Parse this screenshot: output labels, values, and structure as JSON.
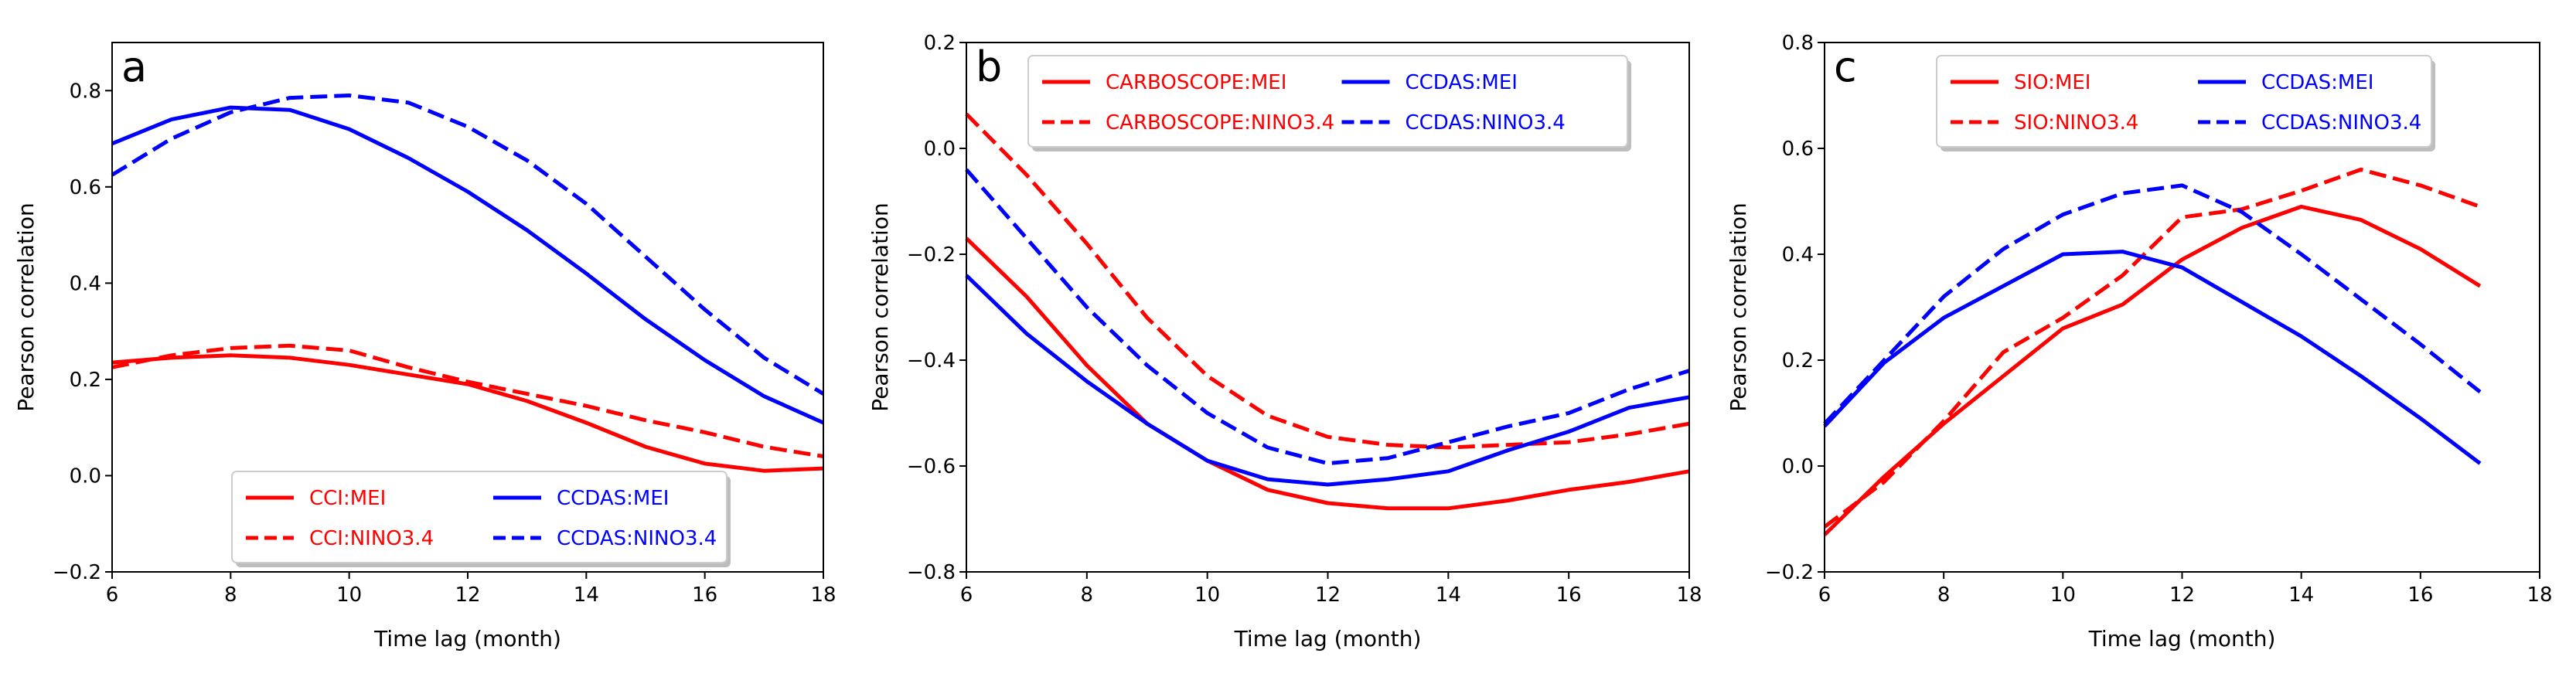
{
  "chart_data": [
    {
      "type": "line",
      "panel_label": "a",
      "xlabel": "Time lag (month)",
      "ylabel": "Pearson correlation",
      "xlim": [
        6,
        18
      ],
      "ylim": [
        -0.2,
        0.9
      ],
      "xticks": [
        6,
        8,
        10,
        12,
        14,
        16,
        18
      ],
      "yticks": [
        -0.2,
        0.0,
        0.2,
        0.4,
        0.6,
        0.8
      ],
      "ytick_labels": [
        "−0.2",
        "0.0",
        "0.2",
        "0.4",
        "0.6",
        "0.8"
      ],
      "legend_position": "lower-center",
      "series": [
        {
          "name": "CCI:MEI",
          "color": "#ff0000",
          "dash": "solid",
          "x": [
            6,
            7,
            8,
            9,
            10,
            11,
            12,
            13,
            14,
            15,
            16,
            17,
            18
          ],
          "y": [
            0.235,
            0.245,
            0.25,
            0.245,
            0.23,
            0.21,
            0.19,
            0.155,
            0.11,
            0.06,
            0.025,
            0.01,
            0.015
          ]
        },
        {
          "name": "CCI:NINO3.4",
          "color": "#ff0000",
          "dash": "dashed",
          "x": [
            6,
            7,
            8,
            9,
            10,
            11,
            12,
            13,
            14,
            15,
            16,
            17,
            18
          ],
          "y": [
            0.225,
            0.25,
            0.265,
            0.27,
            0.26,
            0.225,
            0.195,
            0.17,
            0.145,
            0.115,
            0.09,
            0.06,
            0.04
          ]
        },
        {
          "name": "CCDAS:MEI",
          "color": "#0000ff",
          "dash": "solid",
          "x": [
            6,
            7,
            8,
            9,
            10,
            11,
            12,
            13,
            14,
            15,
            16,
            17,
            18
          ],
          "y": [
            0.69,
            0.74,
            0.765,
            0.76,
            0.72,
            0.66,
            0.59,
            0.51,
            0.42,
            0.325,
            0.24,
            0.165,
            0.11
          ]
        },
        {
          "name": "CCDAS:NINO3.4",
          "color": "#0000ff",
          "dash": "dashed",
          "x": [
            6,
            7,
            8,
            9,
            10,
            11,
            12,
            13,
            14,
            15,
            16,
            17,
            18
          ],
          "y": [
            0.625,
            0.7,
            0.755,
            0.785,
            0.79,
            0.775,
            0.725,
            0.655,
            0.565,
            0.455,
            0.345,
            0.245,
            0.17
          ]
        }
      ]
    },
    {
      "type": "line",
      "panel_label": "b",
      "xlabel": "Time lag (month)",
      "ylabel": "Pearson correlation",
      "xlim": [
        6,
        18
      ],
      "ylim": [
        -0.8,
        0.2
      ],
      "xticks": [
        6,
        8,
        10,
        12,
        14,
        16,
        18
      ],
      "yticks": [
        -0.8,
        -0.6,
        -0.4,
        -0.2,
        0.0,
        0.2
      ],
      "ytick_labels": [
        "−0.8",
        "−0.6",
        "−0.4",
        "−0.2",
        "0.0",
        "0.2"
      ],
      "legend_position": "top-center",
      "series": [
        {
          "name": "CARBOSCOPE:MEI",
          "color": "#ff0000",
          "dash": "solid",
          "x": [
            6,
            7,
            8,
            9,
            10,
            11,
            12,
            13,
            14,
            15,
            16,
            17,
            18
          ],
          "y": [
            -0.17,
            -0.28,
            -0.41,
            -0.52,
            -0.59,
            -0.645,
            -0.67,
            -0.68,
            -0.68,
            -0.665,
            -0.645,
            -0.63,
            -0.61
          ]
        },
        {
          "name": "CARBOSCOPE:NINO3.4",
          "color": "#ff0000",
          "dash": "dashed",
          "x": [
            6,
            7,
            8,
            9,
            10,
            11,
            12,
            13,
            14,
            15,
            16,
            17,
            18
          ],
          "y": [
            0.065,
            -0.05,
            -0.18,
            -0.32,
            -0.43,
            -0.505,
            -0.545,
            -0.56,
            -0.565,
            -0.56,
            -0.555,
            -0.54,
            -0.52
          ]
        },
        {
          "name": "CCDAS:MEI",
          "color": "#0000ff",
          "dash": "solid",
          "x": [
            6,
            7,
            8,
            9,
            10,
            11,
            12,
            13,
            14,
            15,
            16,
            17,
            18
          ],
          "y": [
            -0.24,
            -0.35,
            -0.44,
            -0.52,
            -0.59,
            -0.625,
            -0.635,
            -0.625,
            -0.61,
            -0.57,
            -0.535,
            -0.49,
            -0.47
          ]
        },
        {
          "name": "CCDAS:NINO3.4",
          "color": "#0000ff",
          "dash": "dashed",
          "x": [
            6,
            7,
            8,
            9,
            10,
            11,
            12,
            13,
            14,
            15,
            16,
            17,
            18
          ],
          "y": [
            -0.04,
            -0.17,
            -0.3,
            -0.41,
            -0.5,
            -0.565,
            -0.595,
            -0.585,
            -0.555,
            -0.525,
            -0.5,
            -0.455,
            -0.42
          ]
        }
      ]
    },
    {
      "type": "line",
      "panel_label": "c",
      "xlabel": "Time lag (month)",
      "ylabel": "Pearson correlation",
      "xlim": [
        6,
        18
      ],
      "ylim": [
        -0.2,
        0.8
      ],
      "xticks": [
        6,
        8,
        10,
        12,
        14,
        16,
        18
      ],
      "yticks": [
        -0.2,
        0.0,
        0.2,
        0.4,
        0.6,
        0.8
      ],
      "ytick_labels": [
        "−0.2",
        "0.0",
        "0.2",
        "0.4",
        "0.6",
        "0.8"
      ],
      "legend_position": "top-center",
      "series": [
        {
          "name": "SIO:MEI",
          "color": "#ff0000",
          "dash": "solid",
          "x": [
            6,
            7,
            8,
            9,
            10,
            11,
            12,
            13,
            14,
            15,
            16,
            17
          ],
          "y": [
            -0.13,
            -0.02,
            0.08,
            0.17,
            0.26,
            0.305,
            0.39,
            0.45,
            0.49,
            0.465,
            0.41,
            0.34
          ]
        },
        {
          "name": "SIO:NINO3.4",
          "color": "#ff0000",
          "dash": "dashed",
          "x": [
            6,
            7,
            8,
            9,
            10,
            11,
            12,
            13,
            14,
            15,
            16,
            17
          ],
          "y": [
            -0.115,
            -0.03,
            0.085,
            0.215,
            0.28,
            0.36,
            0.47,
            0.485,
            0.52,
            0.56,
            0.53,
            0.49
          ]
        },
        {
          "name": "CCDAS:MEI",
          "color": "#0000ff",
          "dash": "solid",
          "x": [
            6,
            7,
            8,
            9,
            10,
            11,
            12,
            13,
            14,
            15,
            16,
            17
          ],
          "y": [
            0.075,
            0.195,
            0.28,
            0.34,
            0.4,
            0.405,
            0.375,
            0.31,
            0.245,
            0.17,
            0.09,
            0.005
          ]
        },
        {
          "name": "CCDAS:NINO3.4",
          "color": "#0000ff",
          "dash": "dashed",
          "x": [
            6,
            7,
            8,
            9,
            10,
            11,
            12,
            13,
            14,
            15,
            16,
            17
          ],
          "y": [
            0.08,
            0.2,
            0.32,
            0.41,
            0.475,
            0.515,
            0.53,
            0.48,
            0.4,
            0.315,
            0.23,
            0.14
          ]
        }
      ]
    }
  ]
}
